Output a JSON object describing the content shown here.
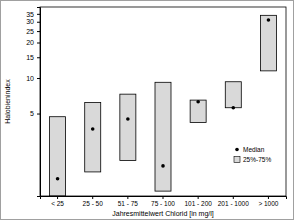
{
  "chart_data": {
    "type": "box",
    "x_label": "Jahresmittelwert Chlorid [in mg/l]",
    "y_label": "Halobienindex",
    "categories": [
      "< 25",
      "25 - 50",
      "51 - 75",
      "75 - 100",
      "101 - 200",
      "201 - 1000",
      "> 1000"
    ],
    "series": [
      {
        "name": "Median",
        "type": "scatter",
        "marker": "circle",
        "color": "#000000",
        "values": [
          1.4,
          3.7,
          4.5,
          1.8,
          6.3,
          5.6,
          31
        ]
      },
      {
        "name": "25%-75%",
        "type": "range",
        "color": "#d9d9d9",
        "low": [
          1.0,
          1.6,
          2.0,
          1.1,
          4.2,
          5.6,
          11.5
        ],
        "high": [
          4.7,
          6.2,
          7.3,
          9.2,
          6.5,
          9.3,
          34
        ]
      }
    ],
    "ylim": [
      1,
      40
    ],
    "yticks": [
      5,
      10,
      15,
      20,
      25,
      30,
      35
    ],
    "log": "y",
    "grid": false,
    "legend": "lower right"
  }
}
